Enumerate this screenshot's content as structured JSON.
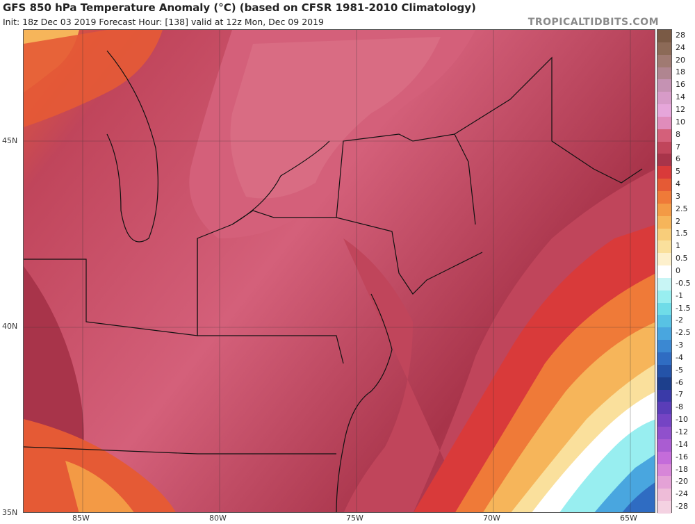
{
  "header": {
    "title": "GFS 850 hPa Temperature Anomaly (°C) (based on CFSR 1981-2010 Climatology)",
    "subtitle": "Init: 18z Dec 03 2019   Forecast Hour: [138]   valid at 12z Mon, Dec 09 2019",
    "brand": "TROPICALTIDBITS.COM"
  },
  "map": {
    "lat_labels": [
      "45N",
      "40N",
      "35N"
    ],
    "lon_labels": [
      "85W",
      "80W",
      "75W",
      "70W",
      "65W"
    ]
  },
  "colorbar": {
    "levels": [
      "28",
      "24",
      "20",
      "18",
      "16",
      "14",
      "12",
      "10",
      "8",
      "7",
      "6",
      "5",
      "4",
      "3",
      "2.5",
      "2",
      "1.5",
      "1",
      "0.5",
      "0",
      "-0.5",
      "-1",
      "-1.5",
      "-2",
      "-2.5",
      "-3",
      "-4",
      "-5",
      "-6",
      "-7",
      "-8",
      "-10",
      "-12",
      "-14",
      "-16",
      "-18",
      "-20",
      "-24",
      "-28"
    ],
    "colors": [
      "#7a5a45",
      "#8c6a57",
      "#a07a72",
      "#b08590",
      "#c592b3",
      "#d79bc8",
      "#e6a6da",
      "#e08cbb",
      "#d4607a",
      "#c0455b",
      "#a8344a",
      "#d93a3a",
      "#e55a35",
      "#ef7a38",
      "#f39a45",
      "#f6b55a",
      "#f8cd7a",
      "#fae09c",
      "#fdf0cc",
      "#ffffff",
      "#c8f5f5",
      "#98eef0",
      "#6fdce8",
      "#58c2e4",
      "#49a6df",
      "#3b88d2",
      "#2f6cc2",
      "#2453a8",
      "#1d3f8c",
      "#3a3aa8",
      "#5a3db8",
      "#7544c4",
      "#9050cc",
      "#aa5cd2",
      "#c46cda",
      "#d786d8",
      "#e4a2d6",
      "#eebcd8",
      "#f4d2e2"
    ]
  }
}
